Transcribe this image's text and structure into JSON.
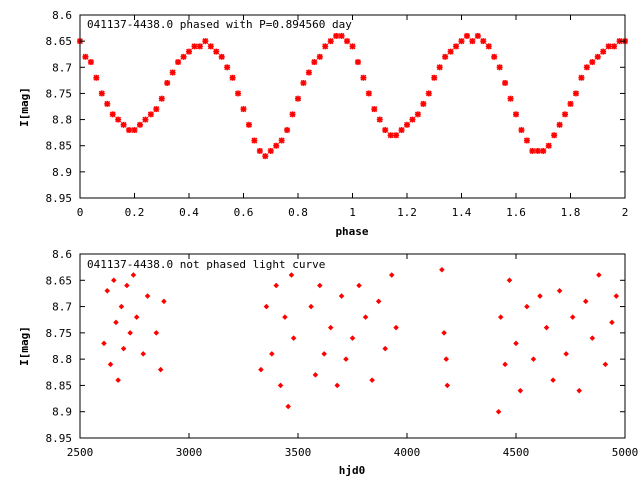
{
  "chart_data": [
    {
      "type": "scatter",
      "title": "041137-4438.0 phased with P=0.894560 day",
      "xlabel": "phase",
      "ylabel": "I[mag]",
      "xlim": [
        0,
        2
      ],
      "ylim": [
        8.95,
        8.6
      ],
      "y_inverted": true,
      "x_ticks": [
        "0",
        "0.2",
        "0.4",
        "0.6",
        "0.8",
        "1",
        "1.2",
        "1.4",
        "1.6",
        "1.8",
        "2"
      ],
      "y_ticks": [
        "8.6",
        "8.65",
        "8.7",
        "8.75",
        "8.8",
        "8.85",
        "8.9",
        "8.95"
      ],
      "marker": "star",
      "color": "#ff0000",
      "series": [
        {
          "x": [
            0.0,
            0.02,
            0.04,
            0.06,
            0.08,
            0.1,
            0.12,
            0.14,
            0.16,
            0.18,
            0.2,
            0.22,
            0.24,
            0.26,
            0.28,
            0.3,
            0.32,
            0.34,
            0.36,
            0.38,
            0.4,
            0.42,
            0.44,
            0.46,
            0.48,
            0.5,
            0.52,
            0.54,
            0.56,
            0.58,
            0.6,
            0.62,
            0.64,
            0.66,
            0.68,
            0.7,
            0.72,
            0.74,
            0.76,
            0.78,
            0.8,
            0.82,
            0.84,
            0.86,
            0.88,
            0.9,
            0.92,
            0.94,
            0.96,
            0.98,
            1.0,
            1.02,
            1.04,
            1.06,
            1.08,
            1.1,
            1.12,
            1.14,
            1.16,
            1.18,
            1.2,
            1.22,
            1.24,
            1.26,
            1.28,
            1.3,
            1.32,
            1.34,
            1.36,
            1.38,
            1.4,
            1.42,
            1.44,
            1.46,
            1.48,
            1.5,
            1.52,
            1.54,
            1.56,
            1.58,
            1.6,
            1.62,
            1.64,
            1.66,
            1.68,
            1.7,
            1.72,
            1.74,
            1.76,
            1.78,
            1.8,
            1.82,
            1.84,
            1.86,
            1.88,
            1.9,
            1.92,
            1.94,
            1.96,
            1.98,
            2.0
          ],
          "y": [
            8.65,
            8.68,
            8.69,
            8.72,
            8.75,
            8.77,
            8.79,
            8.8,
            8.81,
            8.82,
            8.82,
            8.81,
            8.8,
            8.79,
            8.78,
            8.76,
            8.73,
            8.71,
            8.69,
            8.68,
            8.67,
            8.66,
            8.66,
            8.65,
            8.66,
            8.67,
            8.68,
            8.7,
            8.72,
            8.75,
            8.78,
            8.81,
            8.84,
            8.86,
            8.87,
            8.86,
            8.85,
            8.84,
            8.82,
            8.79,
            8.76,
            8.73,
            8.71,
            8.69,
            8.68,
            8.66,
            8.65,
            8.64,
            8.64,
            8.65,
            8.66,
            8.69,
            8.72,
            8.75,
            8.78,
            8.8,
            8.82,
            8.83,
            8.83,
            8.82,
            8.81,
            8.8,
            8.79,
            8.77,
            8.75,
            8.72,
            8.7,
            8.68,
            8.67,
            8.66,
            8.65,
            8.64,
            8.65,
            8.64,
            8.65,
            8.66,
            8.68,
            8.7,
            8.73,
            8.76,
            8.79,
            8.82,
            8.84,
            8.86,
            8.86,
            8.86,
            8.85,
            8.83,
            8.81,
            8.79,
            8.77,
            8.75,
            8.72,
            8.7,
            8.69,
            8.68,
            8.67,
            8.66,
            8.66,
            8.65,
            8.65
          ]
        }
      ]
    },
    {
      "type": "scatter",
      "title": "041137-4438.0 not phased light curve",
      "xlabel": "hjd0",
      "ylabel": "I[mag]",
      "xlim": [
        2500,
        5000
      ],
      "ylim": [
        8.95,
        8.6
      ],
      "y_inverted": true,
      "x_ticks": [
        "2500",
        "3000",
        "3500",
        "4000",
        "4500",
        "5000"
      ],
      "y_ticks": [
        "8.6",
        "8.65",
        "8.7",
        "8.75",
        "8.8",
        "8.85",
        "8.9",
        "8.95"
      ],
      "marker": "diamond",
      "color": "#ff0000",
      "series": [
        {
          "x": [
            2610,
            2625,
            2640,
            2655,
            2665,
            2675,
            2690,
            2700,
            2715,
            2730,
            2745,
            2760,
            2790,
            2810,
            2850,
            2870,
            2885,
            3330,
            3355,
            3380,
            3400,
            3420,
            3440,
            3455,
            3470,
            3480,
            3560,
            3580,
            3600,
            3620,
            3650,
            3680,
            3700,
            3720,
            3750,
            3780,
            3810,
            3840,
            3870,
            3900,
            3930,
            3950,
            4160,
            4170,
            4180,
            4185,
            4420,
            4430,
            4450,
            4470,
            4500,
            4520,
            4550,
            4580,
            4610,
            4640,
            4670,
            4700,
            4730,
            4760,
            4790,
            4820,
            4850,
            4880,
            4910,
            4940,
            4960
          ],
          "y": [
            8.77,
            8.67,
            8.81,
            8.65,
            8.73,
            8.84,
            8.7,
            8.78,
            8.66,
            8.75,
            8.64,
            8.72,
            8.79,
            8.68,
            8.75,
            8.82,
            8.69,
            8.82,
            8.7,
            8.79,
            8.66,
            8.85,
            8.72,
            8.89,
            8.64,
            8.76,
            8.7,
            8.83,
            8.66,
            8.79,
            8.74,
            8.85,
            8.68,
            8.8,
            8.76,
            8.66,
            8.72,
            8.84,
            8.69,
            8.78,
            8.64,
            8.74,
            8.63,
            8.75,
            8.8,
            8.85,
            8.9,
            8.72,
            8.81,
            8.65,
            8.77,
            8.86,
            8.7,
            8.8,
            8.68,
            8.74,
            8.84,
            8.67,
            8.79,
            8.72,
            8.86,
            8.69,
            8.76,
            8.64,
            8.81,
            8.73,
            8.68
          ]
        }
      ]
    }
  ]
}
